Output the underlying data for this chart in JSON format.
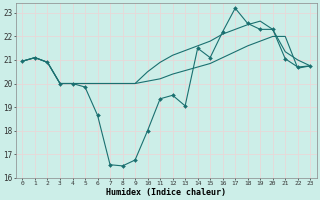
{
  "xlabel": "Humidex (Indice chaleur)",
  "bg_color": "#cceee8",
  "line_color": "#1a7070",
  "grid_color": "#e8d8d8",
  "xlim": [
    -0.5,
    23.5
  ],
  "ylim": [
    16,
    23.4
  ],
  "yticks": [
    16,
    17,
    18,
    19,
    20,
    21,
    22,
    23
  ],
  "xticks": [
    0,
    1,
    2,
    3,
    4,
    5,
    6,
    7,
    8,
    9,
    10,
    11,
    12,
    13,
    14,
    15,
    16,
    17,
    18,
    19,
    20,
    21,
    22,
    23
  ],
  "line1_x": [
    0,
    1,
    2,
    3,
    4,
    5,
    6,
    7,
    8,
    9,
    10,
    11,
    12,
    13,
    14,
    15,
    16,
    17,
    18,
    19,
    20,
    21,
    22,
    23
  ],
  "line1_y": [
    20.95,
    21.1,
    20.9,
    20.0,
    20.0,
    19.85,
    18.65,
    16.55,
    16.5,
    16.75,
    18.0,
    19.35,
    19.5,
    19.05,
    21.5,
    21.1,
    22.2,
    23.2,
    22.55,
    22.3,
    22.3,
    21.05,
    20.7,
    20.75
  ],
  "line2_x": [
    0,
    1,
    2,
    3,
    4,
    5,
    6,
    7,
    8,
    9,
    10,
    11,
    12,
    13,
    14,
    15,
    16,
    17,
    18,
    19,
    20,
    21,
    22,
    23
  ],
  "line2_y": [
    20.95,
    21.1,
    20.9,
    20.0,
    20.0,
    20.0,
    20.0,
    20.0,
    20.0,
    20.0,
    20.1,
    20.2,
    20.4,
    20.55,
    20.7,
    20.85,
    21.1,
    21.35,
    21.6,
    21.8,
    22.0,
    22.0,
    20.65,
    20.75
  ],
  "line3_x": [
    0,
    1,
    2,
    3,
    4,
    5,
    6,
    7,
    8,
    9,
    10,
    11,
    12,
    13,
    14,
    15,
    16,
    17,
    18,
    19,
    20,
    21,
    22,
    23
  ],
  "line3_y": [
    20.95,
    21.1,
    20.9,
    20.0,
    20.0,
    20.0,
    20.0,
    20.0,
    20.0,
    20.0,
    20.5,
    20.9,
    21.2,
    21.4,
    21.6,
    21.8,
    22.1,
    22.3,
    22.5,
    22.65,
    22.3,
    21.35,
    21.0,
    20.75
  ]
}
